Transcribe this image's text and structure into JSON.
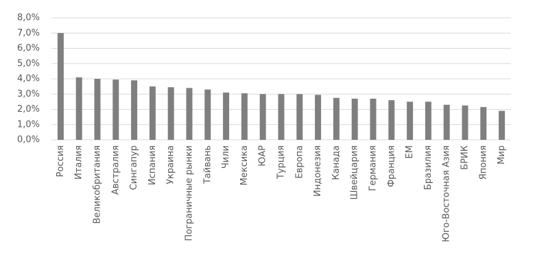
{
  "chart_data": {
    "type": "bar",
    "categories": [
      "Россия",
      "Италия",
      "Великобритания",
      "Австралия",
      "Сингапур",
      "Испания",
      "Украина",
      "Пограничные рынки",
      "Тайвань",
      "Чили",
      "Мексика",
      "ЮАР",
      "Турция",
      "Европа",
      "Индонезия",
      "Канада",
      "Швейцария",
      "Германия",
      "Франция",
      "ЕМ",
      "Бразилия",
      "Юго-Восточная Азия",
      "БРИК",
      "Япония",
      "Мир"
    ],
    "values": [
      7.0,
      4.1,
      4.0,
      3.95,
      3.9,
      3.5,
      3.45,
      3.4,
      3.3,
      3.1,
      3.05,
      3.0,
      3.0,
      3.0,
      2.95,
      2.75,
      2.7,
      2.7,
      2.6,
      2.5,
      2.5,
      2.3,
      2.25,
      2.15,
      1.9
    ],
    "color": "#7f7f7f",
    "ylim": [
      0,
      8
    ],
    "yticks": [
      {
        "value": 0,
        "label": "0,0%"
      },
      {
        "value": 1,
        "label": "1,0%"
      },
      {
        "value": 2,
        "label": "2,0%"
      },
      {
        "value": 3,
        "label": "3,0%"
      },
      {
        "value": 4,
        "label": "4,0%"
      },
      {
        "value": 5,
        "label": "5,0%"
      },
      {
        "value": 6,
        "label": "6,0%"
      },
      {
        "value": 7,
        "label": "7,0%"
      },
      {
        "value": 8,
        "label": "8,0%"
      }
    ],
    "grid": true
  }
}
